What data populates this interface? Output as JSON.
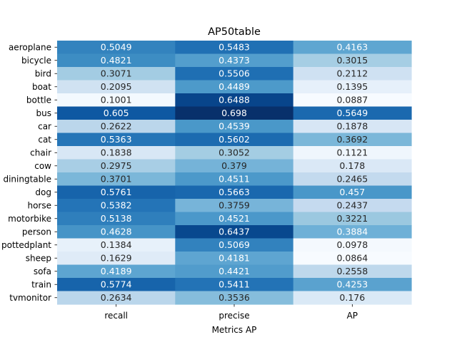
{
  "chart_data": {
    "type": "heatmap",
    "title": "AP50table",
    "xlabel": "Metrics AP",
    "ylabel": "",
    "columns": [
      "recall",
      "precise",
      "AP"
    ],
    "rows": [
      "aeroplane",
      "bicycle",
      "bird",
      "boat",
      "bottle",
      "bus",
      "car",
      "cat",
      "chair",
      "cow",
      "diningtable",
      "dog",
      "horse",
      "motorbike",
      "person",
      "pottedplant",
      "sheep",
      "sofa",
      "train",
      "tvmonitor"
    ],
    "values": [
      [
        0.5049,
        0.5483,
        0.4163
      ],
      [
        0.4821,
        0.4373,
        0.3015
      ],
      [
        0.3071,
        0.5506,
        0.2112
      ],
      [
        0.2095,
        0.4489,
        0.1395
      ],
      [
        0.1001,
        0.6488,
        0.0887
      ],
      [
        0.605,
        0.698,
        0.5649
      ],
      [
        0.2622,
        0.4539,
        0.1878
      ],
      [
        0.5363,
        0.5602,
        0.3692
      ],
      [
        0.1838,
        0.3052,
        0.1121
      ],
      [
        0.2975,
        0.379,
        0.178
      ],
      [
        0.3701,
        0.4511,
        0.2465
      ],
      [
        0.5761,
        0.5663,
        0.457
      ],
      [
        0.5382,
        0.3759,
        0.2437
      ],
      [
        0.5138,
        0.4521,
        0.3221
      ],
      [
        0.4628,
        0.6437,
        0.3884
      ],
      [
        0.1384,
        0.5069,
        0.0978
      ],
      [
        0.1629,
        0.4181,
        0.0864
      ],
      [
        0.4189,
        0.4421,
        0.2558
      ],
      [
        0.5774,
        0.5411,
        0.4253
      ],
      [
        0.2634,
        0.3536,
        0.176
      ]
    ],
    "colormap": "Blues",
    "value_range": [
      0.0887,
      0.698
    ],
    "annotations": true,
    "colorbar": false
  }
}
